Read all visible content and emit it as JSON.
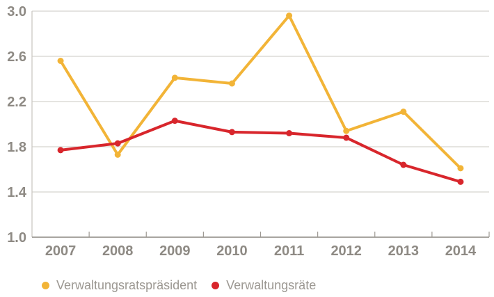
{
  "chart_data": {
    "type": "line",
    "title": "",
    "xlabel": "",
    "ylabel": "",
    "categories": [
      "2007",
      "2008",
      "2009",
      "2010",
      "2011",
      "2012",
      "2013",
      "2014"
    ],
    "series": [
      {
        "name": "Verwaltungsratspräsident",
        "color": "#f2b437",
        "values": [
          2.56,
          1.73,
          2.41,
          2.36,
          2.96,
          1.94,
          2.11,
          1.61
        ]
      },
      {
        "name": "Verwaltungsräte",
        "color": "#d8262c",
        "values": [
          1.77,
          1.83,
          2.03,
          1.93,
          1.92,
          1.88,
          1.64,
          1.49
        ]
      }
    ],
    "ylim": [
      1.0,
      3.0
    ],
    "yticks": [
      3.0,
      2.6,
      2.2,
      1.8,
      1.4,
      1.0
    ],
    "ytick_labels": [
      "3.0",
      "2.6",
      "2.2",
      "1.8",
      "1.4",
      "1.0"
    ],
    "grid": true,
    "legend_position": "bottom"
  },
  "legend": {
    "marker_icon": "circle-icon"
  },
  "colors": {
    "series_president": "#f2b437",
    "series_raete": "#d8262c",
    "axis_text": "#8e8a84",
    "legend_text": "#9b9791",
    "gridline": "#cbc8c3",
    "axis_line": "#9c9892",
    "background": "#ffffff"
  }
}
